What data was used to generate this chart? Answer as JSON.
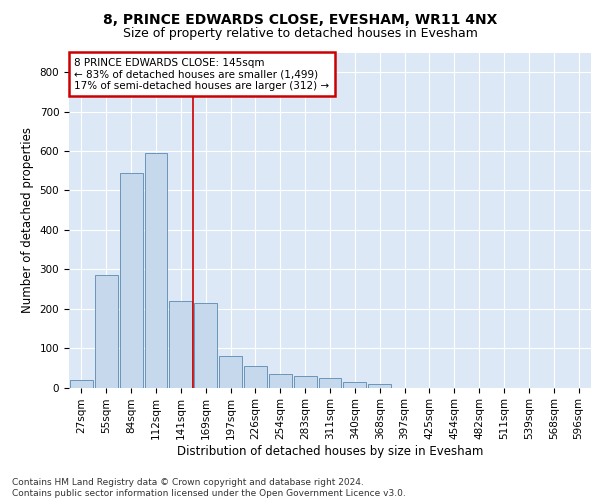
{
  "title": "8, PRINCE EDWARDS CLOSE, EVESHAM, WR11 4NX",
  "subtitle": "Size of property relative to detached houses in Evesham",
  "xlabel": "Distribution of detached houses by size in Evesham",
  "ylabel": "Number of detached properties",
  "bar_color": "#c5d8ec",
  "bar_edge_color": "#5a8ab0",
  "background_color": "#dce8f5",
  "fig_background": "#ffffff",
  "categories": [
    "27sqm",
    "55sqm",
    "84sqm",
    "112sqm",
    "141sqm",
    "169sqm",
    "197sqm",
    "226sqm",
    "254sqm",
    "283sqm",
    "311sqm",
    "340sqm",
    "368sqm",
    "397sqm",
    "425sqm",
    "454sqm",
    "482sqm",
    "511sqm",
    "539sqm",
    "568sqm",
    "596sqm"
  ],
  "values": [
    20,
    285,
    545,
    595,
    220,
    215,
    80,
    55,
    35,
    30,
    25,
    15,
    8,
    0,
    0,
    0,
    0,
    0,
    0,
    0,
    0
  ],
  "ylim": [
    0,
    850
  ],
  "yticks": [
    0,
    100,
    200,
    300,
    400,
    500,
    600,
    700,
    800
  ],
  "red_line_x": 4.5,
  "marker_label_line1": "8 PRINCE EDWARDS CLOSE: 145sqm",
  "marker_label_line2": "← 83% of detached houses are smaller (1,499)",
  "marker_label_line3": "17% of semi-detached houses are larger (312) →",
  "footer_line1": "Contains HM Land Registry data © Crown copyright and database right 2024.",
  "footer_line2": "Contains public sector information licensed under the Open Government Licence v3.0.",
  "grid_color": "#ffffff",
  "title_fontsize": 10,
  "subtitle_fontsize": 9,
  "axis_label_fontsize": 8.5,
  "tick_fontsize": 7.5,
  "annotation_fontsize": 7.5,
  "footer_fontsize": 6.5
}
